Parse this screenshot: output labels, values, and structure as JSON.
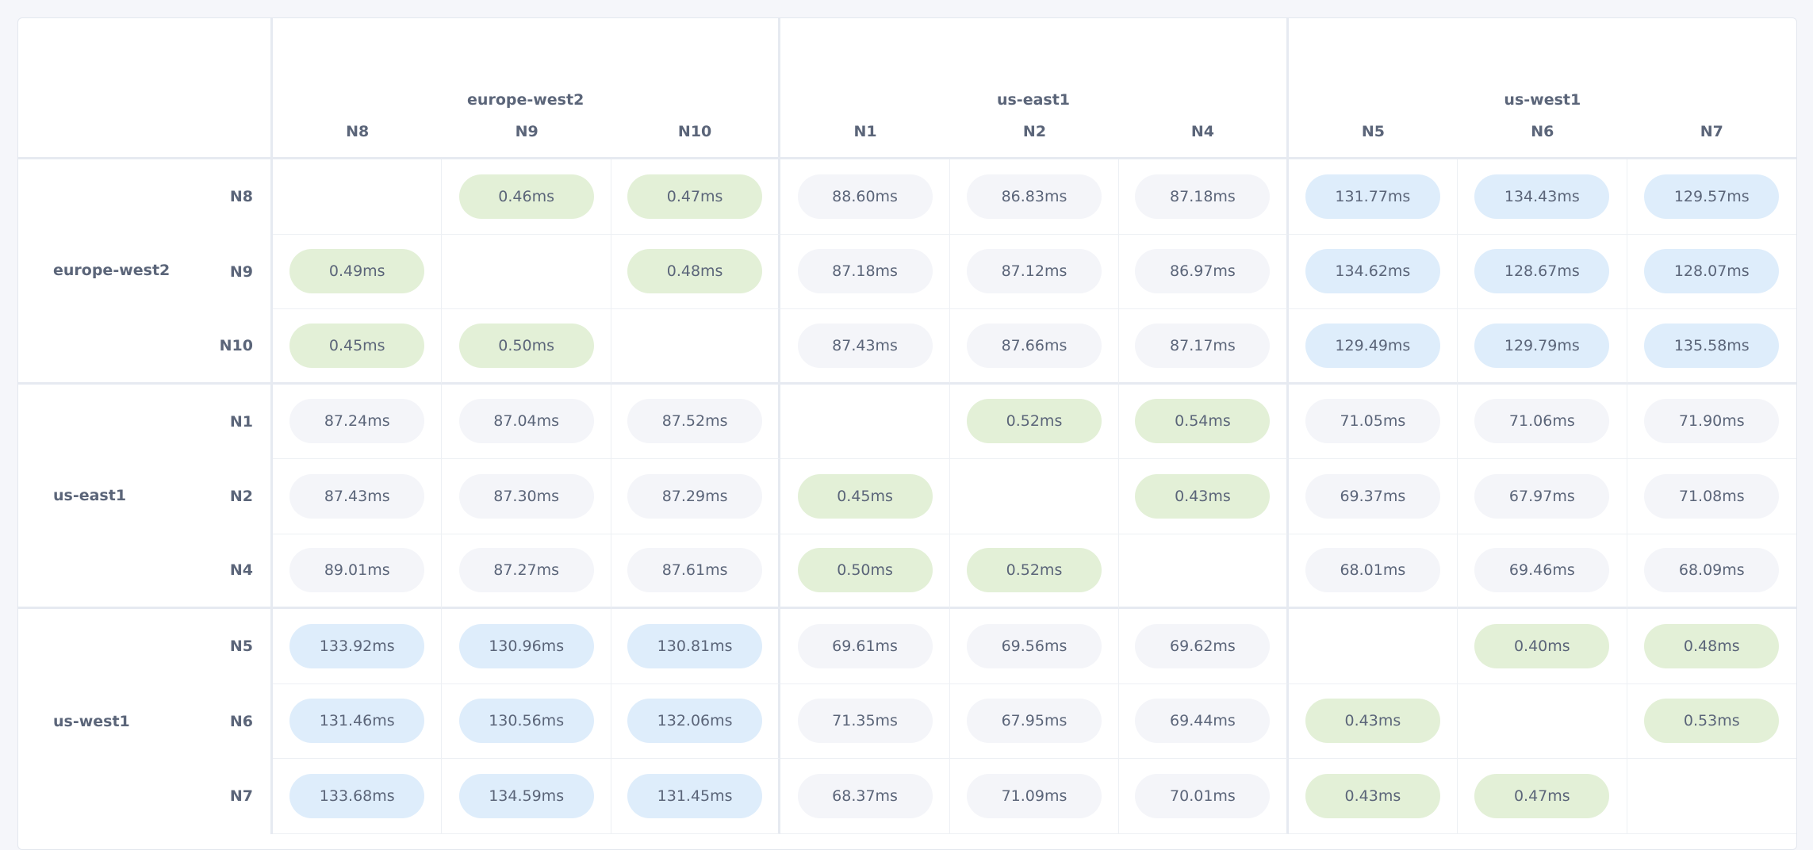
{
  "colors": {
    "g": "#e3f0d7",
    "b": "#deedfb",
    "n": "#f4f5f9",
    "text": "#5b6579"
  },
  "regions": [
    {
      "name": "europe-west2",
      "nodes": [
        "N8",
        "N9",
        "N10"
      ]
    },
    {
      "name": "us-east1",
      "nodes": [
        "N1",
        "N2",
        "N4"
      ]
    },
    {
      "name": "us-west1",
      "nodes": [
        "N5",
        "N6",
        "N7"
      ]
    }
  ],
  "rows": [
    {
      "tiers": "-ggnnnbbb",
      "cells": [
        "",
        "0.46ms",
        "0.47ms",
        "88.60ms",
        "86.83ms",
        "87.18ms",
        "131.77ms",
        "134.43ms",
        "129.57ms"
      ]
    },
    {
      "tiers": "g-gnnnbbb",
      "cells": [
        "0.49ms",
        "",
        "0.48ms",
        "87.18ms",
        "87.12ms",
        "86.97ms",
        "134.62ms",
        "128.67ms",
        "128.07ms"
      ]
    },
    {
      "tiers": "gg-nnnbbb",
      "cells": [
        "0.45ms",
        "0.50ms",
        "",
        "87.43ms",
        "87.66ms",
        "87.17ms",
        "129.49ms",
        "129.79ms",
        "135.58ms"
      ]
    },
    {
      "tiers": "nnn-ggnnn",
      "cells": [
        "87.24ms",
        "87.04ms",
        "87.52ms",
        "",
        "0.52ms",
        "0.54ms",
        "71.05ms",
        "71.06ms",
        "71.90ms"
      ]
    },
    {
      "tiers": "nnng-gnnn",
      "cells": [
        "87.43ms",
        "87.30ms",
        "87.29ms",
        "0.45ms",
        "",
        "0.43ms",
        "69.37ms",
        "67.97ms",
        "71.08ms"
      ]
    },
    {
      "tiers": "nnngg-nnn",
      "cells": [
        "89.01ms",
        "87.27ms",
        "87.61ms",
        "0.50ms",
        "0.52ms",
        "",
        "68.01ms",
        "69.46ms",
        "68.09ms"
      ]
    },
    {
      "tiers": "bbbnnn-gg",
      "cells": [
        "133.92ms",
        "130.96ms",
        "130.81ms",
        "69.61ms",
        "69.56ms",
        "69.62ms",
        "",
        "0.40ms",
        "0.48ms"
      ]
    },
    {
      "tiers": "bbbnnng-g",
      "cells": [
        "131.46ms",
        "130.56ms",
        "132.06ms",
        "71.35ms",
        "67.95ms",
        "69.44ms",
        "0.43ms",
        "",
        "0.53ms"
      ]
    },
    {
      "tiers": "bbbnnngg-",
      "cells": [
        "133.68ms",
        "134.59ms",
        "131.45ms",
        "68.37ms",
        "71.09ms",
        "70.01ms",
        "0.43ms",
        "0.47ms",
        ""
      ]
    }
  ]
}
